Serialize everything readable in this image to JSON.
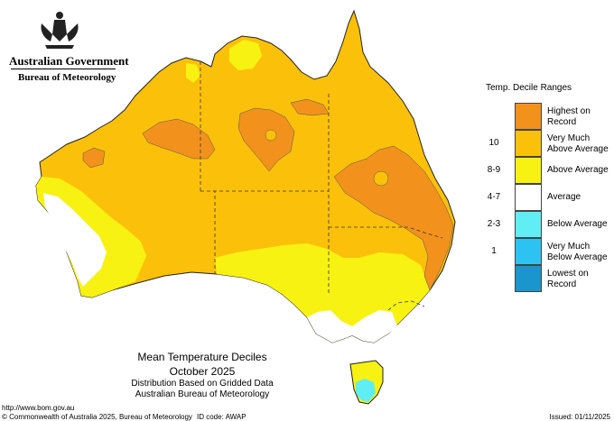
{
  "header": {
    "government": "Australian Government",
    "bureau": "Bureau of Meteorology",
    "crest_icon": "coat-of-arms-icon"
  },
  "legend": {
    "title": "Temp. Decile Ranges",
    "items": [
      {
        "code": "",
        "label_lines": [
          "Highest on",
          "Record"
        ],
        "color": "#F2921C"
      },
      {
        "code": "10",
        "label_lines": [
          "Very Much",
          "Above Average"
        ],
        "color": "#FBC10A"
      },
      {
        "code": "8-9",
        "label_lines": [
          "Above Average"
        ],
        "color": "#F7F211"
      },
      {
        "code": "4-7",
        "label_lines": [
          "Average"
        ],
        "color": "#FFFFFF"
      },
      {
        "code": "2-3",
        "label_lines": [
          "Below Average"
        ],
        "color": "#60EDF3"
      },
      {
        "code": "1",
        "label_lines": [
          "Very Much",
          "Below Average"
        ],
        "color": "#2CC3F2"
      },
      {
        "code": "",
        "label_lines": [
          "Lowest on",
          "Record"
        ],
        "color": "#1A95CD"
      }
    ]
  },
  "titles": {
    "line1": "Mean Temperature Deciles",
    "line2": "October 2025",
    "line3": "Distribution Based on Gridded Data",
    "line4": "Australian Bureau of Meteorology"
  },
  "footer": {
    "url": "http://www.bom.gov.au",
    "copyright": "© Commonwealth of Australia 2025, Bureau of Meteorology",
    "id_code": "ID code: AWAP",
    "issued": "Issued: 01/11/2025"
  }
}
